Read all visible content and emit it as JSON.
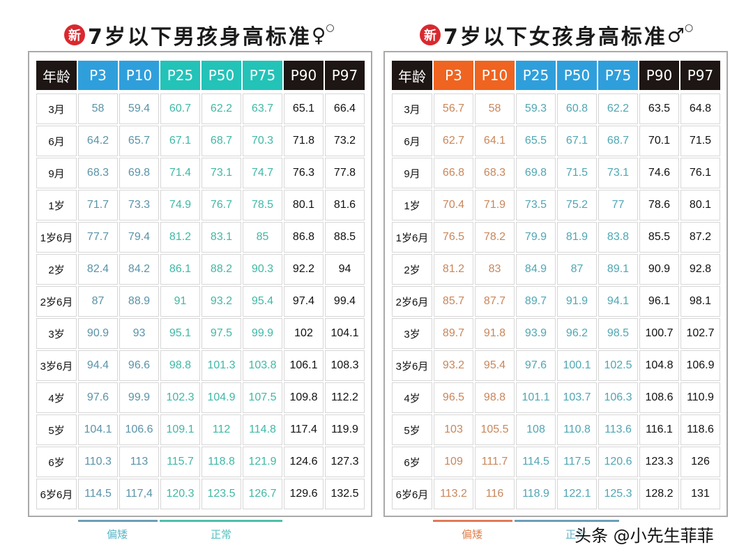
{
  "colors": {
    "header_dark": "#1e1614",
    "boys_short_header": "#2f9fdc",
    "boys_normal_header": "#23c3b8",
    "girls_short_header": "#ef6420",
    "girls_normal_header": "#2f9fdc",
    "boys_short_text": "#5a93a8",
    "boys_normal_text": "#3fb8a6",
    "girls_short_text": "#c9865a",
    "girls_normal_text": "#4fa6b3",
    "dark_text": "#111111"
  },
  "boys": {
    "badge": "新",
    "title": "7岁以下男孩身高标准",
    "gender_symbol": "♀",
    "headers": [
      "年龄",
      "P3",
      "P10",
      "P25",
      "P50",
      "P75",
      "P90",
      "P97"
    ],
    "legend": [
      {
        "label": "偏矮"
      },
      {
        "label": "正常"
      }
    ]
  },
  "girls": {
    "badge": "新",
    "title": "7岁以下女孩身高标准",
    "gender_symbol": "♂",
    "headers": [
      "年龄",
      "P3",
      "P10",
      "P25",
      "P50",
      "P75",
      "P90",
      "P97"
    ],
    "legend": [
      {
        "label": "偏矮"
      },
      {
        "label": "正常"
      }
    ]
  },
  "watermark": "头条 @小先生菲菲",
  "chart_data": [
    {
      "type": "table",
      "title": "7岁以下男孩身高标准",
      "columns": [
        "年龄",
        "P3",
        "P10",
        "P25",
        "P50",
        "P75",
        "P90",
        "P97"
      ],
      "rows": [
        [
          "3月",
          "58",
          "59.4",
          "60.7",
          "62.2",
          "63.7",
          "65.1",
          "66.4"
        ],
        [
          "6月",
          "64.2",
          "65.7",
          "67.1",
          "68.7",
          "70.3",
          "71.8",
          "73.2"
        ],
        [
          "9月",
          "68.3",
          "69.8",
          "71.4",
          "73.1",
          "74.7",
          "76.3",
          "77.8"
        ],
        [
          "1岁",
          "71.7",
          "73.3",
          "74.9",
          "76.7",
          "78.5",
          "80.1",
          "81.6"
        ],
        [
          "1岁6月",
          "77.7",
          "79.4",
          "81.2",
          "83.1",
          "85",
          "86.8",
          "88.5"
        ],
        [
          "2岁",
          "82.4",
          "84.2",
          "86.1",
          "88.2",
          "90.3",
          "92.2",
          "94"
        ],
        [
          "2岁6月",
          "87",
          "88.9",
          "91",
          "93.2",
          "95.4",
          "97.4",
          "99.4"
        ],
        [
          "3岁",
          "90.9",
          "93",
          "95.1",
          "97.5",
          "99.9",
          "102",
          "104.1"
        ],
        [
          "3岁6月",
          "94.4",
          "96.6",
          "98.8",
          "101.3",
          "103.8",
          "106.1",
          "108.3"
        ],
        [
          "4岁",
          "97.6",
          "99.9",
          "102.3",
          "104.9",
          "107.5",
          "109.8",
          "112.2"
        ],
        [
          "5岁",
          "104.1",
          "106.6",
          "109.1",
          "112",
          "114.8",
          "117.4",
          "119.9"
        ],
        [
          "6岁",
          "110.3",
          "113",
          "115.7",
          "118.8",
          "121.9",
          "124.6",
          "127.3"
        ],
        [
          "6岁6月",
          "114.5",
          "117,4",
          "120.3",
          "123.5",
          "126.7",
          "129.6",
          "132.5"
        ]
      ],
      "legend": [
        "偏矮 (P3–P10)",
        "正常 (P25–P75)"
      ]
    },
    {
      "type": "table",
      "title": "7岁以下女孩身高标准",
      "columns": [
        "年龄",
        "P3",
        "P10",
        "P25",
        "P50",
        "P75",
        "P90",
        "P97"
      ],
      "rows": [
        [
          "3月",
          "56.7",
          "58",
          "59.3",
          "60.8",
          "62.2",
          "63.5",
          "64.8"
        ],
        [
          "6月",
          "62.7",
          "64.1",
          "65.5",
          "67.1",
          "68.7",
          "70.1",
          "71.5"
        ],
        [
          "9月",
          "66.8",
          "68.3",
          "69.8",
          "71.5",
          "73.1",
          "74.6",
          "76.1"
        ],
        [
          "1岁",
          "70.4",
          "71.9",
          "73.5",
          "75.2",
          "77",
          "78.6",
          "80.1"
        ],
        [
          "1岁6月",
          "76.5",
          "78.2",
          "79.9",
          "81.9",
          "83.8",
          "85.5",
          "87.2"
        ],
        [
          "2岁",
          "81.2",
          "83",
          "84.9",
          "87",
          "89.1",
          "90.9",
          "92.8"
        ],
        [
          "2岁6月",
          "85.7",
          "87.7",
          "89.7",
          "91.9",
          "94.1",
          "96.1",
          "98.1"
        ],
        [
          "3岁",
          "89.7",
          "91.8",
          "93.9",
          "96.2",
          "98.5",
          "100.7",
          "102.7"
        ],
        [
          "3岁6月",
          "93.2",
          "95.4",
          "97.6",
          "100.1",
          "102.5",
          "104.8",
          "106.9"
        ],
        [
          "4岁",
          "96.5",
          "98.8",
          "101.1",
          "103.7",
          "106.3",
          "108.6",
          "110.9"
        ],
        [
          "5岁",
          "103",
          "105.5",
          "108",
          "110.8",
          "113.6",
          "116.1",
          "118.6"
        ],
        [
          "6岁",
          "109",
          "111.7",
          "114.5",
          "117.5",
          "120.6",
          "123.3",
          "126"
        ],
        [
          "6岁6月",
          "113.2",
          "116",
          "118.9",
          "122.1",
          "125.3",
          "128.2",
          "131"
        ]
      ],
      "legend": [
        "偏矮 (P3–P10)",
        "正常 (P25–P75)"
      ]
    }
  ]
}
